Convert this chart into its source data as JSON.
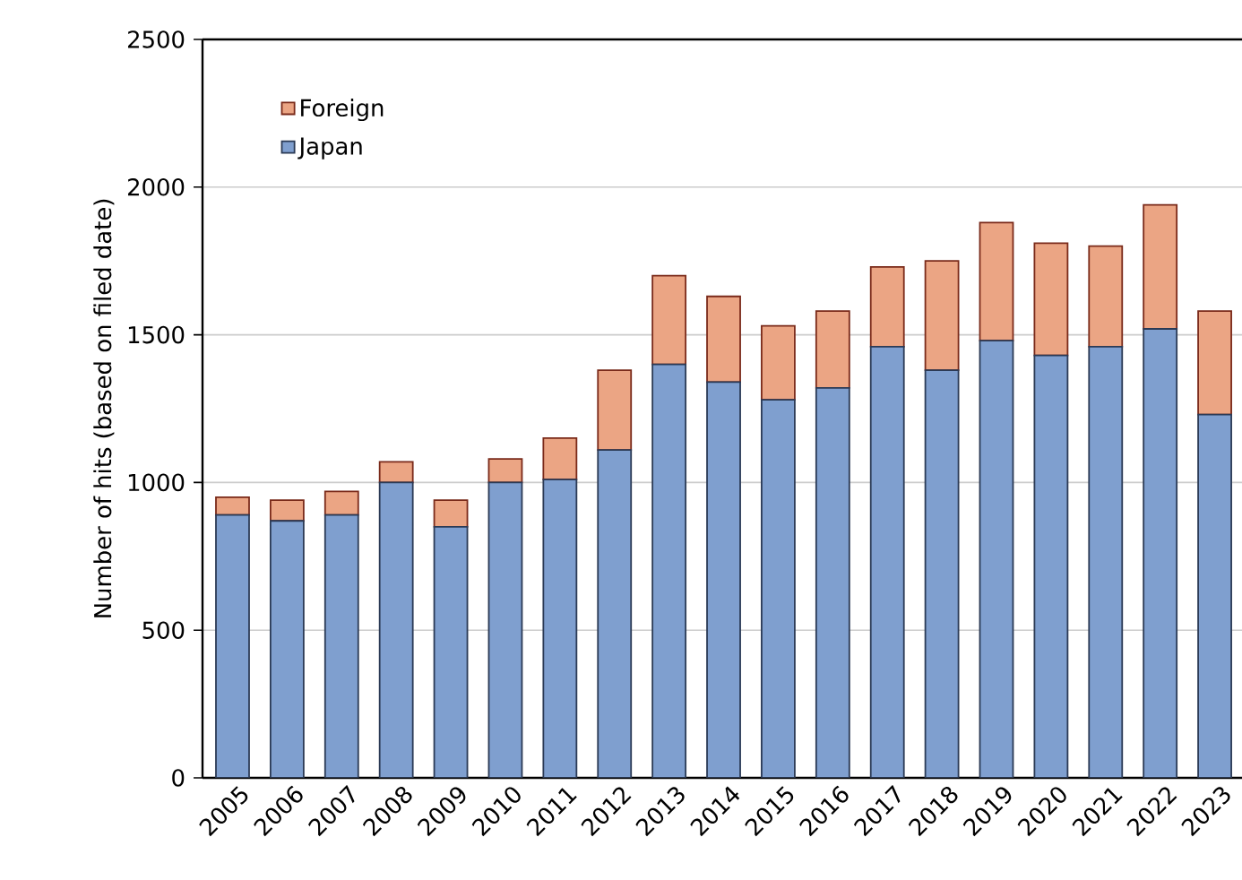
{
  "chart_data": {
    "type": "bar",
    "stacked": true,
    "ylabel": "Number of hits (based on filed date)",
    "categories": [
      "2005",
      "2006",
      "2007",
      "2008",
      "2009",
      "2010",
      "2011",
      "2012",
      "2013",
      "2014",
      "2015",
      "2016",
      "2017",
      "2018",
      "2019",
      "2020",
      "2021",
      "2022",
      "2023"
    ],
    "series": [
      {
        "name": "Japan",
        "color": "#7f9fcf",
        "values": [
          890,
          870,
          890,
          1000,
          850,
          1000,
          1010,
          1110,
          1400,
          1340,
          1280,
          1320,
          1460,
          1380,
          1480,
          1430,
          1460,
          1520,
          1230
        ]
      },
      {
        "name": "Foreign",
        "color": "#eba584",
        "values": [
          60,
          70,
          80,
          70,
          90,
          80,
          140,
          270,
          300,
          290,
          250,
          260,
          270,
          370,
          400,
          380,
          340,
          420,
          350
        ]
      }
    ],
    "ylim": [
      0,
      2500
    ],
    "yticks": [
      0,
      500,
      1000,
      1500,
      2000,
      2500
    ],
    "grid": "y",
    "legend": "top left"
  }
}
